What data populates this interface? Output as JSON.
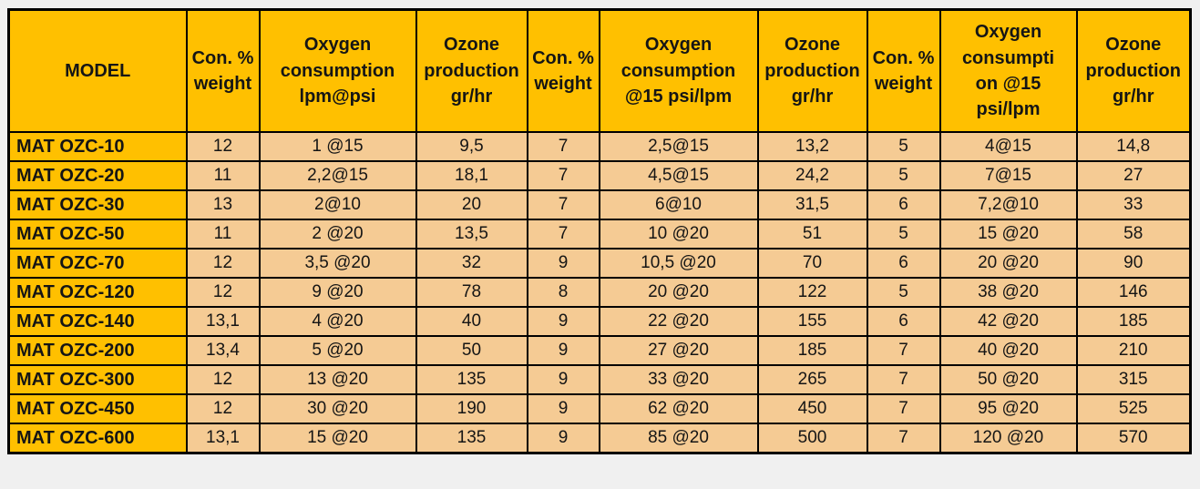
{
  "colors": {
    "page_background": "#F0F0F0",
    "header_background": "#FFC000",
    "model_column_background": "#FFC000",
    "data_cell_background": "#F5CB94",
    "border": "#000000",
    "text": "#151515"
  },
  "table": {
    "header_columns": [
      "MODEL",
      "Con. %\nweight",
      "Oxygen\nconsumption\nlpm@psi",
      "Ozone\nproduction\ngr/hr",
      "Con. %\nweight",
      "Oxygen\nconsumption\n@15 psi/lpm",
      "Ozone\nproduction\ngr/hr",
      "Con. %\nweight",
      "Oxygen\nconsumpti\non @15\npsi/lpm",
      "Ozone\nproduction\ngr/hr"
    ],
    "rows": [
      {
        "model": "MAT OZC-10",
        "values": [
          "12",
          "1 @15",
          "9,5",
          "7",
          "2,5@15",
          "13,2",
          "5",
          "4@15",
          "14,8"
        ]
      },
      {
        "model": "MAT OZC-20",
        "values": [
          "11",
          "2,2@15",
          "18,1",
          "7",
          "4,5@15",
          "24,2",
          "5",
          "7@15",
          "27"
        ]
      },
      {
        "model": "MAT OZC-30",
        "values": [
          "13",
          "2@10",
          "20",
          "7",
          "6@10",
          "31,5",
          "6",
          "7,2@10",
          "33"
        ]
      },
      {
        "model": "MAT OZC-50",
        "values": [
          "11",
          "2 @20",
          "13,5",
          "7",
          "10 @20",
          "51",
          "5",
          "15 @20",
          "58"
        ]
      },
      {
        "model": "MAT OZC-70",
        "values": [
          "12",
          "3,5 @20",
          "32",
          "9",
          "10,5 @20",
          "70",
          "6",
          "20 @20",
          "90"
        ]
      },
      {
        "model": "MAT OZC-120",
        "values": [
          "12",
          "9 @20",
          "78",
          "8",
          "20 @20",
          "122",
          "5",
          "38 @20",
          "146"
        ]
      },
      {
        "model": "MAT OZC-140",
        "values": [
          "13,1",
          "4 @20",
          "40",
          "9",
          "22 @20",
          "155",
          "6",
          "42 @20",
          "185"
        ]
      },
      {
        "model": "MAT OZC-200",
        "values": [
          "13,4",
          "5 @20",
          "50",
          "9",
          "27 @20",
          "185",
          "7",
          "40 @20",
          "210"
        ]
      },
      {
        "model": "MAT OZC-300",
        "values": [
          "12",
          "13 @20",
          "135",
          "9",
          "33 @20",
          "265",
          "7",
          "50 @20",
          "315"
        ]
      },
      {
        "model": "MAT OZC-450",
        "values": [
          "12",
          "30 @20",
          "190",
          "9",
          "62 @20",
          "450",
          "7",
          "95 @20",
          "525"
        ]
      },
      {
        "model": "MAT OZC-600",
        "values": [
          "13,1",
          "15 @20",
          "135",
          "9",
          "85 @20",
          "500",
          "7",
          "120 @20",
          "570"
        ]
      }
    ]
  },
  "chart_data": {
    "type": "table",
    "columns": [
      "MODEL",
      "Con. % weight",
      "Oxygen consumption lpm@psi",
      "Ozone production gr/hr",
      "Con. % weight",
      "Oxygen consumption @15 psi/lpm",
      "Ozone production gr/hr",
      "Con. % weight",
      "Oxygen consumption @15 psi/lpm",
      "Ozone production gr/hr"
    ],
    "rows": [
      [
        "MAT OZC-10",
        "12",
        "1 @15",
        "9,5",
        "7",
        "2,5@15",
        "13,2",
        "5",
        "4@15",
        "14,8"
      ],
      [
        "MAT OZC-20",
        "11",
        "2,2@15",
        "18,1",
        "7",
        "4,5@15",
        "24,2",
        "5",
        "7@15",
        "27"
      ],
      [
        "MAT OZC-30",
        "13",
        "2@10",
        "20",
        "7",
        "6@10",
        "31,5",
        "6",
        "7,2@10",
        "33"
      ],
      [
        "MAT OZC-50",
        "11",
        "2 @20",
        "13,5",
        "7",
        "10 @20",
        "51",
        "5",
        "15 @20",
        "58"
      ],
      [
        "MAT OZC-70",
        "12",
        "3,5 @20",
        "32",
        "9",
        "10,5 @20",
        "70",
        "6",
        "20 @20",
        "90"
      ],
      [
        "MAT OZC-120",
        "12",
        "9 @20",
        "78",
        "8",
        "20 @20",
        "122",
        "5",
        "38 @20",
        "146"
      ],
      [
        "MAT OZC-140",
        "13,1",
        "4 @20",
        "40",
        "9",
        "22 @20",
        "155",
        "6",
        "42 @20",
        "185"
      ],
      [
        "MAT OZC-200",
        "13,4",
        "5 @20",
        "50",
        "9",
        "27 @20",
        "185",
        "7",
        "40 @20",
        "210"
      ],
      [
        "MAT OZC-300",
        "12",
        "13 @20",
        "135",
        "9",
        "33 @20",
        "265",
        "7",
        "50 @20",
        "315"
      ],
      [
        "MAT OZC-450",
        "12",
        "30 @20",
        "190",
        "9",
        "62 @20",
        "450",
        "7",
        "95 @20",
        "525"
      ],
      [
        "MAT OZC-600",
        "13,1",
        "15 @20",
        "135",
        "9",
        "85 @20",
        "500",
        "7",
        "120 @20",
        "570"
      ]
    ]
  }
}
